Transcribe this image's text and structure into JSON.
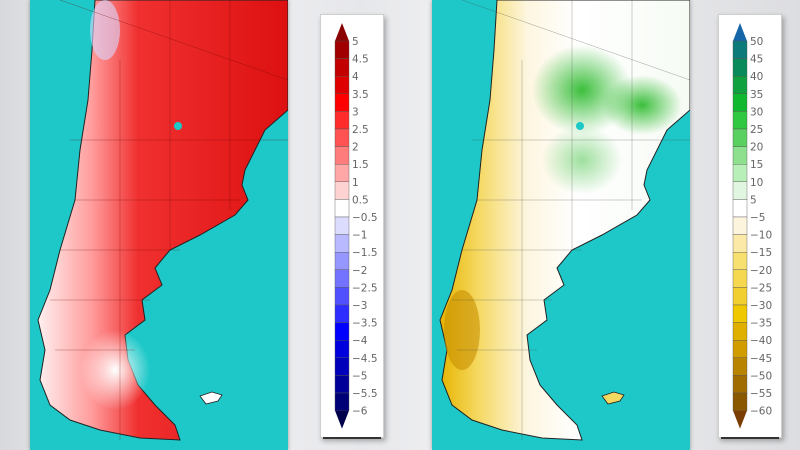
{
  "maps": {
    "left": {
      "ocean_color": "#1ec8c8",
      "scale": "temperature-anomaly"
    },
    "right": {
      "ocean_color": "#1ec8c8",
      "scale": "precipitation-anomaly"
    }
  },
  "colorbar_left": {
    "labels": [
      "5",
      "4.5",
      "4",
      "3.5",
      "3",
      "2.5",
      "2",
      "1.5",
      "1",
      "0.5",
      "−0.5",
      "−1",
      "−1.5",
      "−2",
      "−2.5",
      "−3",
      "−3.5",
      "−4",
      "−4.5",
      "−5",
      "−5.5",
      "−6"
    ],
    "arrow_top": "#8b0000",
    "arrow_bottom": "#00004d",
    "colors": [
      "#a00000",
      "#c20000",
      "#de0000",
      "#ff0000",
      "#ff2c2c",
      "#ff5252",
      "#ff7c7c",
      "#ffa6a6",
      "#ffd2d2",
      "#ffffff",
      "#dcdcff",
      "#b9b9ff",
      "#9696ff",
      "#7373ff",
      "#5050ff",
      "#2d2dff",
      "#0000ff",
      "#0000dd",
      "#0000bb",
      "#000099",
      "#000077"
    ]
  },
  "colorbar_right": {
    "labels": [
      "50",
      "45",
      "40",
      "35",
      "30",
      "25",
      "20",
      "15",
      "10",
      "5",
      "−5",
      "−10",
      "−15",
      "−20",
      "−25",
      "−30",
      "−35",
      "−40",
      "−45",
      "−50",
      "−55",
      "−60"
    ],
    "arrow_top": "#1466a8",
    "arrow_bottom": "#7a3c00",
    "colors": [
      "#0e7a7a",
      "#0a8a5a",
      "#10a040",
      "#10b830",
      "#30c840",
      "#5ad060",
      "#8ee08e",
      "#b8eeb8",
      "#e0f6e0",
      "#ffffff",
      "#fcf4dc",
      "#fbe9a8",
      "#f8e070",
      "#f5d850",
      "#f2cf30",
      "#f0c800",
      "#e0b000",
      "#d09c00",
      "#b88400",
      "#a06c00",
      "#8a5800"
    ]
  }
}
